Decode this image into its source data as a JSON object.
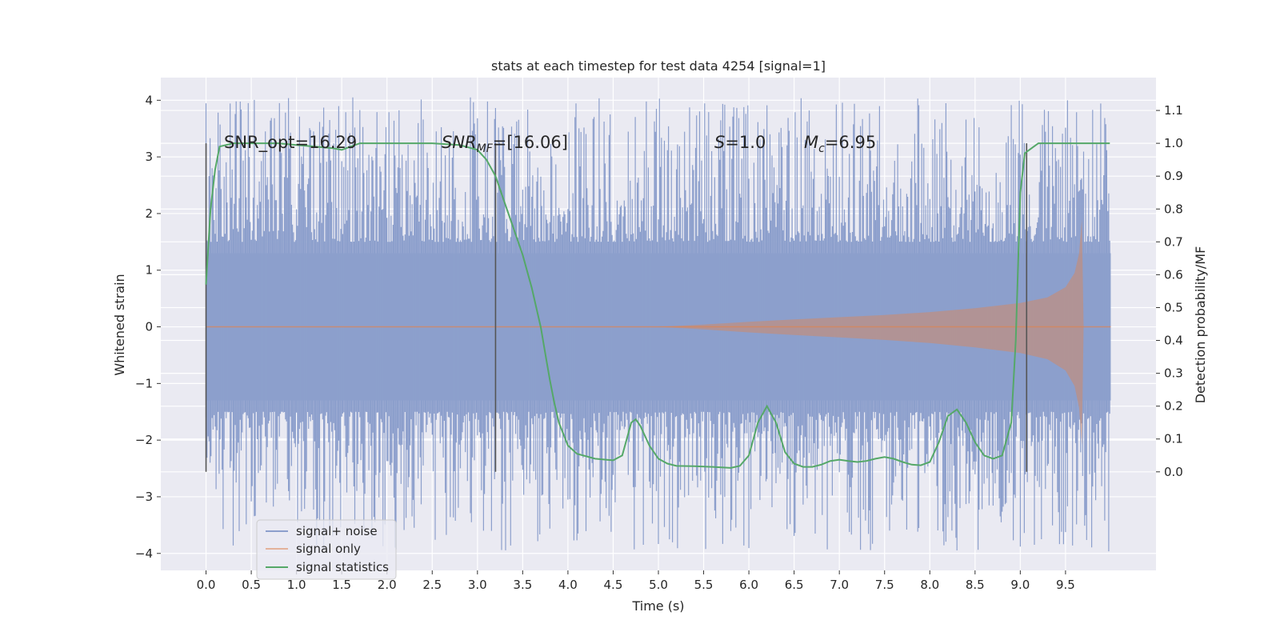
{
  "chart_data": {
    "type": "line",
    "title": "stats at each timestep for test data 4254 [signal=1]",
    "xlabel": "Time (s)",
    "ylabel": "Whitened strain",
    "ylabel_right": "Detection probability/MF",
    "xlim": [
      -0.5,
      10.5
    ],
    "ylim": [
      -4.3,
      4.4
    ],
    "ylim_right": [
      -0.3,
      1.2
    ],
    "x_ticks": [
      "0.0",
      "0.5",
      "1.0",
      "1.5",
      "2.0",
      "2.5",
      "3.0",
      "3.5",
      "4.0",
      "4.5",
      "5.0",
      "5.5",
      "6.0",
      "6.5",
      "7.0",
      "7.5",
      "8.0",
      "8.5",
      "9.0",
      "9.5"
    ],
    "y_ticks": [
      "−4",
      "−3",
      "−2",
      "−1",
      "0",
      "1",
      "2",
      "3",
      "4"
    ],
    "y_right_ticks": [
      "0.0",
      "0.1",
      "0.2",
      "0.3",
      "0.4",
      "0.5",
      "0.6",
      "0.7",
      "0.8",
      "0.9",
      "1.0",
      "1.1"
    ],
    "grid": true,
    "legend_position": "lower-left",
    "annotations": {
      "snr_opt": "SNR_opt=16.29",
      "snr_mf_main": "SNR",
      "snr_mf_sub": "MF",
      "snr_mf_rest": "=[16.06]",
      "s_main": "S",
      "s_rest": "=1.0",
      "mc_main": "M",
      "mc_sub": "c",
      "mc_rest": "=6.95"
    },
    "vertical_lines_x": [
      0.0,
      3.2,
      9.07
    ],
    "noise_envelope": {
      "x": [
        0.0,
        10.0
      ],
      "core": [
        -1.3,
        1.3
      ],
      "peak_max": 4.0,
      "peak_min": -3.9
    },
    "signal_envelope": {
      "x": [
        0.0,
        5.0,
        5.5,
        6.0,
        6.5,
        7.0,
        7.5,
        8.0,
        8.5,
        9.0,
        9.3,
        9.5,
        9.6,
        9.65,
        9.68,
        9.7
      ],
      "amp": [
        0.0,
        0.0,
        0.04,
        0.09,
        0.13,
        0.17,
        0.21,
        0.26,
        0.33,
        0.42,
        0.52,
        0.7,
        0.95,
        1.3,
        1.9,
        0.0
      ]
    },
    "series": [
      {
        "name": "signal+ noise",
        "color": "#8c9fcc"
      },
      {
        "name": "signal only",
        "color": "#dd8452"
      },
      {
        "name": "signal statistics",
        "color": "#55a868",
        "x": [
          0.0,
          0.05,
          0.1,
          0.15,
          0.3,
          0.5,
          0.8,
          1.0,
          1.2,
          1.4,
          1.5,
          1.6,
          1.7,
          1.8,
          2.0,
          2.5,
          2.8,
          3.0,
          3.1,
          3.2,
          3.3,
          3.4,
          3.5,
          3.6,
          3.7,
          3.75,
          3.8,
          3.85,
          3.9,
          4.0,
          4.1,
          4.3,
          4.5,
          4.6,
          4.7,
          4.75,
          4.8,
          4.9,
          5.0,
          5.1,
          5.2,
          5.4,
          5.6,
          5.8,
          5.9,
          6.0,
          6.1,
          6.2,
          6.3,
          6.4,
          6.5,
          6.6,
          6.7,
          6.8,
          6.9,
          7.0,
          7.1,
          7.2,
          7.3,
          7.4,
          7.5,
          7.6,
          7.7,
          7.8,
          7.9,
          8.0,
          8.1,
          8.2,
          8.3,
          8.4,
          8.5,
          8.6,
          8.7,
          8.8,
          8.9,
          8.95,
          9.0,
          9.05,
          9.1,
          9.15,
          9.2,
          9.3,
          9.5,
          9.7,
          9.9,
          9.99
        ],
        "y": [
          0.57,
          0.8,
          0.92,
          0.99,
          1.0,
          1.0,
          1.0,
          0.995,
          0.99,
          0.985,
          0.98,
          0.99,
          1.0,
          1.0,
          1.0,
          1.0,
          0.995,
          0.98,
          0.95,
          0.9,
          0.82,
          0.74,
          0.66,
          0.56,
          0.44,
          0.36,
          0.28,
          0.21,
          0.15,
          0.08,
          0.055,
          0.04,
          0.035,
          0.05,
          0.15,
          0.16,
          0.14,
          0.08,
          0.04,
          0.025,
          0.018,
          0.017,
          0.015,
          0.012,
          0.018,
          0.05,
          0.15,
          0.2,
          0.15,
          0.06,
          0.025,
          0.015,
          0.015,
          0.022,
          0.033,
          0.037,
          0.033,
          0.03,
          0.033,
          0.04,
          0.045,
          0.04,
          0.03,
          0.022,
          0.02,
          0.03,
          0.09,
          0.17,
          0.19,
          0.15,
          0.09,
          0.05,
          0.04,
          0.05,
          0.15,
          0.4,
          0.85,
          0.97,
          0.98,
          0.99,
          1.0,
          1.0,
          1.0,
          1.0,
          1.0,
          1.0
        ]
      }
    ]
  }
}
